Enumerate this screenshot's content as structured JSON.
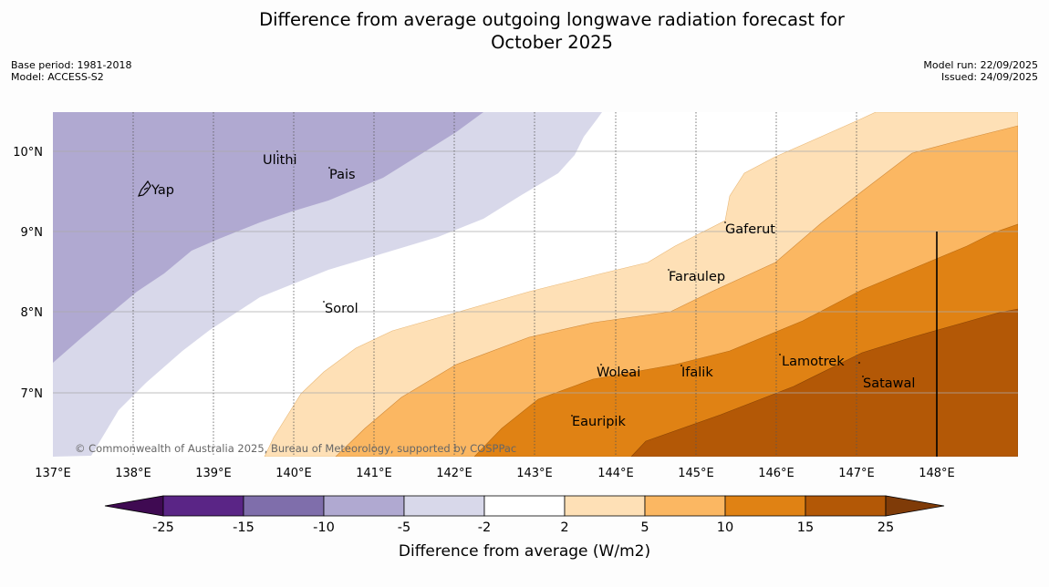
{
  "title_line1": "Difference from average outgoing longwave radiation forecast for",
  "title_line2": "October 2025",
  "base_period": "Base period: 1981-2018",
  "model": "Model: ACCESS-S2",
  "model_run": "Model run: 22/09/2025",
  "issued": "Issued: 24/09/2025",
  "copyright": "© Commonwealth of Australia 2025, Bureau of Meteorology, supported by COSPPac",
  "lon_ticks": [
    "137°E",
    "138°E",
    "139°E",
    "140°E",
    "141°E",
    "142°E",
    "143°E",
    "144°E",
    "145°E",
    "146°E",
    "147°E",
    "148°E"
  ],
  "lat_ticks": [
    "10°N",
    "9°N",
    "8°N",
    "7°N"
  ],
  "places": [
    "Yap",
    "Ulithi",
    "Pais",
    "Gaferut",
    "Faraulep",
    "Sorol",
    "Woleai",
    "Ifalik",
    "Lamotrek",
    "Satawal",
    "Eauripik"
  ],
  "colorbar": {
    "label": "Difference from average (W/m2)",
    "ticks": [
      "-25",
      "-15",
      "-10",
      "-5",
      "-2",
      "2",
      "5",
      "10",
      "15",
      "25"
    ],
    "colors": [
      "#3f0a52",
      "#5a2586",
      "#7f6eab",
      "#b0a9d1",
      "#d8d8ea",
      "#ffffff",
      "#fee0b6",
      "#fbb762",
      "#e08214",
      "#b35806",
      "#7f3b08"
    ]
  }
}
